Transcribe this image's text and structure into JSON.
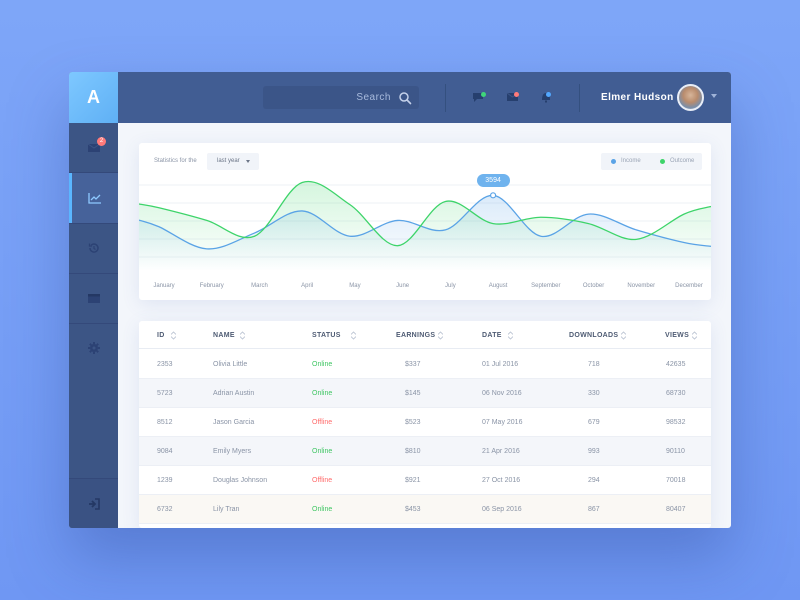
{
  "app": {
    "logo_letter": "A"
  },
  "header": {
    "search_placeholder": "Search",
    "user_name": "Elmer Hudson",
    "icon_dot_colors": [
      "#3fd67a",
      "#ff7a7a",
      "#52a8ff"
    ]
  },
  "sidebar": {
    "items": [
      {
        "name": "messages",
        "icon": "mail-icon",
        "badge": "2"
      },
      {
        "name": "statistics",
        "icon": "chart-icon",
        "active": true
      },
      {
        "name": "history",
        "icon": "history-icon"
      },
      {
        "name": "calendar",
        "icon": "calendar-icon"
      },
      {
        "name": "settings",
        "icon": "gear-icon"
      }
    ],
    "logout_icon": "logout-icon"
  },
  "stats": {
    "label": "Statistics for the",
    "period": "last year",
    "legend": [
      "Income",
      "Outcome"
    ],
    "tooltip_value": "3594"
  },
  "chart_data": {
    "type": "line",
    "x": [
      "January",
      "February",
      "March",
      "April",
      "May",
      "June",
      "July",
      "August",
      "September",
      "October",
      "November",
      "December"
    ],
    "series": [
      {
        "name": "Income",
        "color": "#5aa3e6",
        "values": [
          2600,
          1900,
          2400,
          3100,
          2300,
          2800,
          2500,
          3594,
          2300,
          3000,
          2500,
          2100
        ]
      },
      {
        "name": "Outcome",
        "color": "#3ed46a",
        "values": [
          3200,
          2800,
          2300,
          4000,
          3300,
          2000,
          3400,
          2700,
          2900,
          2700,
          2200,
          3000
        ]
      }
    ],
    "ylim": [
      1200,
      4300
    ],
    "highlight": {
      "x": "August",
      "series": "Income",
      "value": 3594
    },
    "grid": true,
    "legend_position": "top-right"
  },
  "table": {
    "headers": [
      "ID",
      "NAME",
      "STATUS",
      "EARNINGS",
      "DATE",
      "DOWNLOADS",
      "VIEWS"
    ],
    "rows": [
      [
        "2353",
        "Olivia Little",
        "Online",
        "$337",
        "01 Jul 2016",
        "718",
        "42635"
      ],
      [
        "5723",
        "Adrian Austin",
        "Online",
        "$145",
        "06 Nov 2016",
        "330",
        "68730"
      ],
      [
        "8512",
        "Jason Garcia",
        "Offline",
        "$523",
        "07 May 2016",
        "679",
        "98532"
      ],
      [
        "9084",
        "Emily Myers",
        "Online",
        "$810",
        "21 Apr 2016",
        "993",
        "90110"
      ],
      [
        "1239",
        "Douglas Johnson",
        "Offline",
        "$921",
        "27 Oct 2016",
        "294",
        "70018"
      ],
      [
        "6732",
        "Lily Tran",
        "Online",
        "$453",
        "06 Sep 2016",
        "867",
        "80407"
      ]
    ]
  },
  "colors": {
    "accent": "#5ab6ff",
    "online": "#3fc663",
    "offline": "#ff6b6b",
    "topbar": "#415d93",
    "sidebar": "#3c5585"
  }
}
